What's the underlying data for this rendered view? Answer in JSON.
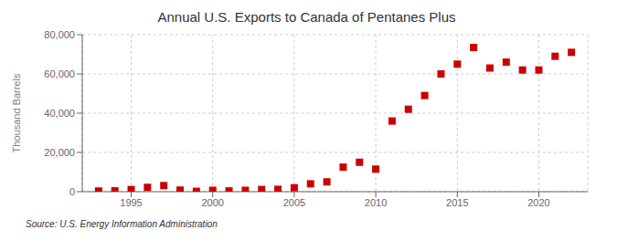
{
  "chart_data": {
    "type": "scatter",
    "title": "Annual U.S. Exports to Canada of Pentanes Plus",
    "ylabel": "Thousand Barrels",
    "annotations": [
      "Source: U.S. Energy Information Administration"
    ],
    "x": [
      1993,
      1994,
      1995,
      1996,
      1997,
      1998,
      1999,
      2000,
      2001,
      2002,
      2003,
      2004,
      2005,
      2006,
      2007,
      2008,
      2009,
      2010,
      2011,
      2012,
      2013,
      2014,
      2015,
      2016,
      2017,
      2018,
      2019,
      2020,
      2021,
      2022
    ],
    "values": [
      350,
      450,
      1100,
      2200,
      3100,
      800,
      200,
      700,
      400,
      700,
      1100,
      1200,
      2000,
      4000,
      5000,
      12500,
      15000,
      11500,
      36000,
      42000,
      49000,
      60000,
      65000,
      73500,
      63000,
      66000,
      62000,
      62000,
      69000,
      71000
    ],
    "color": "#cc0000",
    "marker": "square",
    "xlim": [
      1992,
      2023
    ],
    "xticks": [
      1995,
      2000,
      2005,
      2010,
      2015,
      2020
    ],
    "ylim": [
      0,
      80000
    ],
    "yticks": [
      0,
      {
        "value": 20000,
        "label": "20,000"
      },
      {
        "value": 40000,
        "label": "40,000"
      },
      {
        "value": 60000,
        "label": "60,000"
      },
      {
        "value": 80000,
        "label": "80,000"
      }
    ],
    "grid": true
  }
}
